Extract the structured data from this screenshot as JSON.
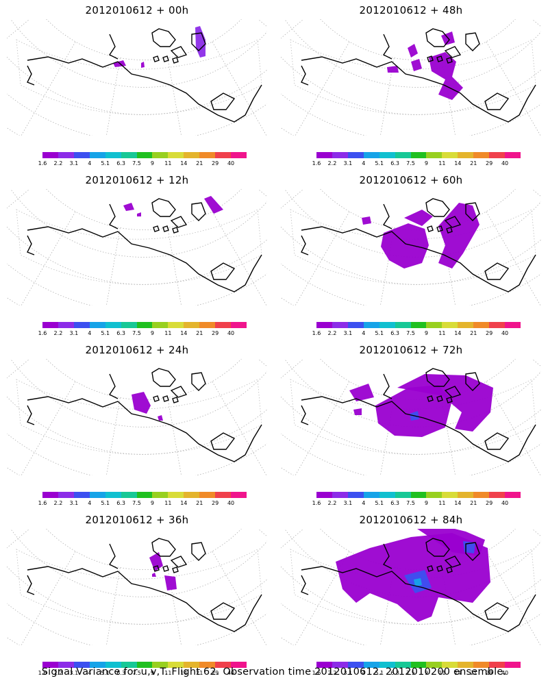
{
  "colorbar": {
    "labels": [
      "1.6",
      "2.2",
      "3.1",
      "4",
      "5.1",
      "6.3",
      "7.5",
      "9",
      "11",
      "14",
      "21",
      "29",
      "40"
    ],
    "colors": [
      "#9a00d0",
      "#8c2ce8",
      "#3c50f0",
      "#16a3e8",
      "#10c0d0",
      "#17c896",
      "#20c020",
      "#98d020",
      "#d8dc38",
      "#e4b42c",
      "#f08a28",
      "#f0404c",
      "#f0148c"
    ]
  },
  "panels": [
    {
      "title": "2012010612 + 00h"
    },
    {
      "title": "2012010612 + 48h"
    },
    {
      "title": "2012010612 + 12h"
    },
    {
      "title": "2012010612 + 60h"
    },
    {
      "title": "2012010612 + 24h"
    },
    {
      "title": "2012010612 + 72h"
    },
    {
      "title": "2012010612 + 36h"
    },
    {
      "title": "2012010612 + 84h"
    }
  ],
  "footer": {
    "caption": "Signal Variance for u,v,T. Flight 62. Observation time 2012010612. 2012010200 ensemble."
  }
}
